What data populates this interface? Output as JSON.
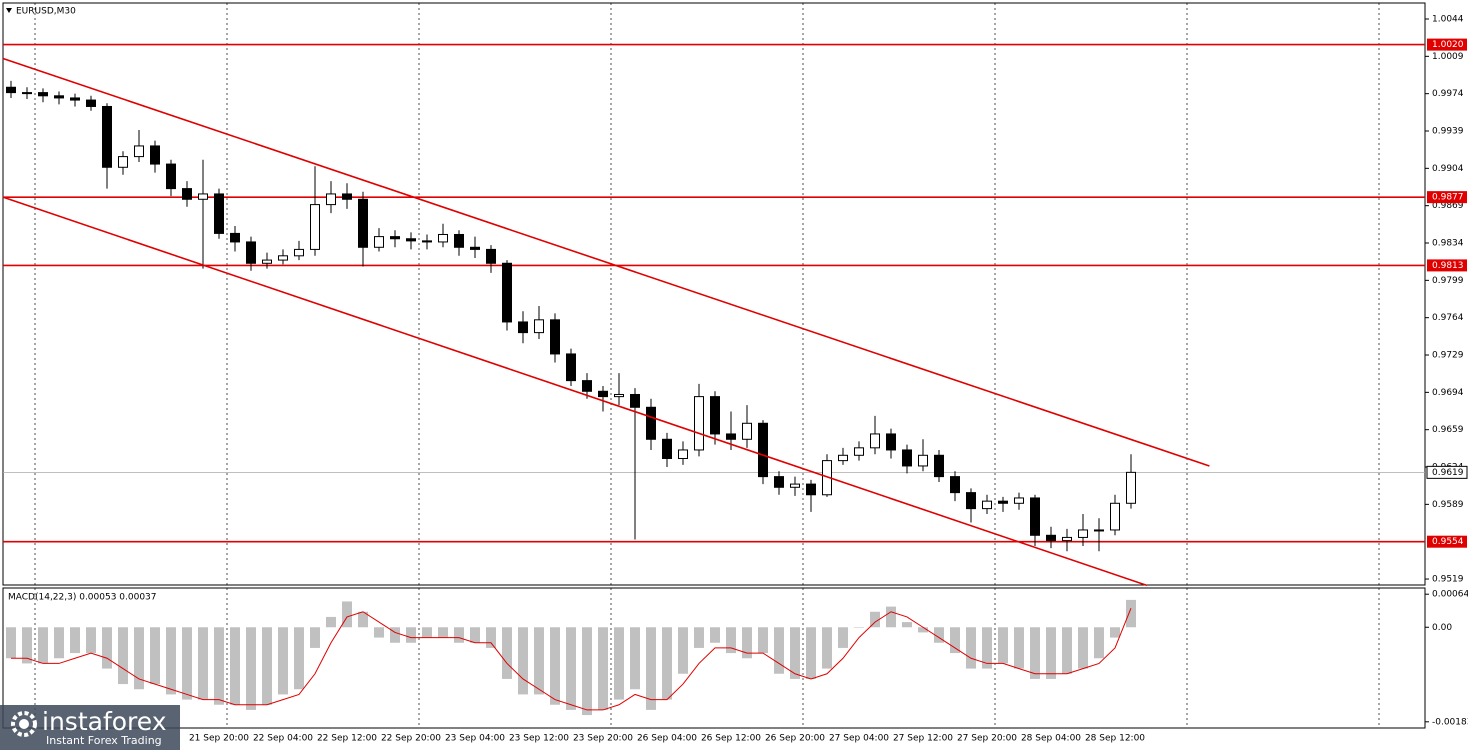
{
  "chart_data": [
    {
      "type": "candlestick",
      "title": "EURUSD,M30",
      "categories": [
        null,
        null,
        null,
        null,
        null,
        null,
        null,
        null,
        null,
        null,
        null,
        null,
        null,
        "21 Sep 20:00",
        null,
        null,
        null,
        "22 Sep 04:00",
        null,
        null,
        null,
        "22 Sep 12:00",
        null,
        null,
        null,
        "22 Sep 20:00",
        null,
        null,
        null,
        "23 Sep 04:00",
        null,
        null,
        null,
        "23 Sep 12:00",
        null,
        null,
        null,
        "23 Sep 20:00",
        null,
        null,
        null,
        "26 Sep 04:00",
        null,
        null,
        null,
        "26 Sep 12:00",
        null,
        null,
        null,
        "26 Sep 20:00",
        null,
        null,
        null,
        "27 Sep 04:00",
        null,
        null,
        null,
        "27 Sep 12:00",
        null,
        null,
        null,
        "27 Sep 20:00",
        null,
        null,
        null,
        "28 Sep 04:00",
        null,
        null,
        null,
        "28 Sep 12:00",
        null
      ],
      "open": [
        0.998,
        0.9975,
        0.9975,
        0.9972,
        0.997,
        0.9968,
        0.9962,
        0.9905,
        0.9915,
        0.9925,
        0.9908,
        0.9885,
        0.9875,
        0.988,
        0.9843,
        0.9835,
        0.9815,
        0.9818,
        0.9822,
        0.9828,
        0.987,
        0.988,
        0.9875,
        0.983,
        0.984,
        0.9838,
        0.9836,
        0.9835,
        0.9842,
        0.983,
        0.9828,
        0.9815,
        0.976,
        0.975,
        0.9762,
        0.973,
        0.9705,
        0.9695,
        0.969,
        0.9692,
        0.968,
        0.965,
        0.9632,
        0.964,
        0.969,
        0.9655,
        0.965,
        0.9665,
        0.9615,
        0.9605,
        0.9608,
        0.9598,
        0.963,
        0.9635,
        0.9642,
        0.9655,
        0.964,
        0.9625,
        0.9635,
        0.9615,
        0.96,
        0.9585,
        0.9592,
        0.959,
        0.9595,
        0.956,
        0.9555,
        0.9558,
        0.9565,
        0.9565,
        0.959
      ],
      "high": [
        0.9986,
        0.998,
        0.9979,
        0.9976,
        0.9974,
        0.9972,
        0.9965,
        0.992,
        0.994,
        0.993,
        0.9912,
        0.9892,
        0.9912,
        0.9885,
        0.985,
        0.984,
        0.9825,
        0.9828,
        0.9836,
        0.9906,
        0.9892,
        0.989,
        0.9882,
        0.9848,
        0.9846,
        0.9844,
        0.9842,
        0.9852,
        0.9846,
        0.984,
        0.9832,
        0.9818,
        0.977,
        0.9775,
        0.9768,
        0.9735,
        0.9712,
        0.97,
        0.9712,
        0.9698,
        0.9688,
        0.9656,
        0.9648,
        0.9702,
        0.9695,
        0.9676,
        0.9682,
        0.9668,
        0.962,
        0.9615,
        0.9612,
        0.9636,
        0.9642,
        0.9648,
        0.9672,
        0.966,
        0.9645,
        0.965,
        0.964,
        0.962,
        0.9604,
        0.9598,
        0.9596,
        0.96,
        0.9598,
        0.9568,
        0.9566,
        0.958,
        0.9576,
        0.9598,
        0.9636
      ],
      "low": [
        0.997,
        0.9969,
        0.9966,
        0.9964,
        0.9962,
        0.9958,
        0.9885,
        0.9898,
        0.991,
        0.99,
        0.9878,
        0.9868,
        0.981,
        0.9838,
        0.9826,
        0.9808,
        0.981,
        0.9814,
        0.9818,
        0.9822,
        0.9862,
        0.9866,
        0.9812,
        0.9826,
        0.983,
        0.9828,
        0.9828,
        0.983,
        0.9822,
        0.982,
        0.9806,
        0.9752,
        0.974,
        0.9744,
        0.9722,
        0.97,
        0.9688,
        0.9676,
        0.9682,
        0.9556,
        0.964,
        0.9624,
        0.9626,
        0.9634,
        0.9645,
        0.964,
        0.9642,
        0.9608,
        0.9598,
        0.9597,
        0.9582,
        0.9596,
        0.9626,
        0.963,
        0.9636,
        0.9632,
        0.9618,
        0.962,
        0.961,
        0.9592,
        0.9572,
        0.958,
        0.9582,
        0.9584,
        0.955,
        0.9548,
        0.9545,
        0.955,
        0.9545,
        0.956,
        0.9585
      ],
      "close": [
        0.9975,
        0.9975,
        0.9972,
        0.997,
        0.9968,
        0.9962,
        0.9905,
        0.9915,
        0.9925,
        0.9908,
        0.9885,
        0.9875,
        0.988,
        0.9843,
        0.9835,
        0.9815,
        0.9818,
        0.9822,
        0.9828,
        0.987,
        0.988,
        0.9875,
        0.983,
        0.984,
        0.9838,
        0.9836,
        0.9835,
        0.9842,
        0.983,
        0.9828,
        0.9815,
        0.976,
        0.975,
        0.9762,
        0.973,
        0.9705,
        0.9695,
        0.969,
        0.9692,
        0.968,
        0.965,
        0.9632,
        0.964,
        0.969,
        0.9655,
        0.965,
        0.9665,
        0.9615,
        0.9605,
        0.9608,
        0.9598,
        0.963,
        0.9635,
        0.9642,
        0.9655,
        0.964,
        0.9625,
        0.9635,
        0.9615,
        0.96,
        0.9585,
        0.9592,
        0.959,
        0.9595,
        0.956,
        0.9555,
        0.9558,
        0.9565,
        0.9565,
        0.959,
        0.9619
      ],
      "up_color": "#ffffff",
      "down_color": "#000000",
      "ylim": [
        0.95134,
        1.0059
      ],
      "yticks": [
        1.0044,
        1.0009,
        0.9974,
        0.9939,
        0.9904,
        0.9869,
        0.9834,
        0.9799,
        0.9764,
        0.9729,
        0.9694,
        0.9659,
        0.9624,
        0.9589,
        0.9519
      ],
      "levels": [
        {
          "value": 1.002,
          "label": "1.0020"
        },
        0.9877,
        0.9813,
        0.9554
      ],
      "level_color": "#e00000",
      "last_price": 0.9619,
      "trendlines": [
        {
          "x": [
            -0.5,
            74.9
          ],
          "y": [
            1.0007,
            0.9625
          ]
        },
        {
          "x": [
            -0.5,
            71.0
          ],
          "y": [
            0.9877,
            0.9513
          ]
        }
      ]
    },
    {
      "type": "macd",
      "title": "MACD(14,22,3) 0.00053 0.00037",
      "histogram": {
        "color": "#c0c0c0",
        "values": [
          -0.0006,
          -0.0007,
          -0.0007,
          -0.0006,
          -0.0005,
          -0.0005,
          -0.0008,
          -0.0011,
          -0.0012,
          -0.0011,
          -0.0013,
          -0.0014,
          -0.0014,
          -0.0015,
          -0.0015,
          -0.0016,
          -0.0015,
          -0.0013,
          -0.0012,
          -0.0004,
          0.0002,
          0.0005,
          0.0003,
          -0.0002,
          -0.0003,
          -0.0003,
          -0.0002,
          -0.0002,
          -0.0003,
          -0.0003,
          -0.0004,
          -0.001,
          -0.0013,
          -0.0013,
          -0.0015,
          -0.0016,
          -0.0017,
          -0.0016,
          -0.0014,
          -0.0012,
          -0.0016,
          -0.0014,
          -0.0009,
          -0.0004,
          -0.0003,
          -0.0005,
          -0.0006,
          -0.0005,
          -0.0009,
          -0.001,
          -0.001,
          -0.0008,
          -0.0004,
          0.0,
          0.0003,
          0.0004,
          0.0001,
          -0.0001,
          -0.0003,
          -0.0005,
          -0.0008,
          -0.0008,
          -0.0007,
          -0.0008,
          -0.001,
          -0.001,
          -0.0009,
          -0.0008,
          -0.0006,
          -0.0002,
          0.00053
        ]
      },
      "signal": {
        "color": "#e00000",
        "values": [
          -0.0006,
          -0.0006,
          -0.0007,
          -0.0007,
          -0.0006,
          -0.0005,
          -0.0006,
          -0.0008,
          -0.001,
          -0.0011,
          -0.0012,
          -0.0013,
          -0.0014,
          -0.0014,
          -0.0015,
          -0.0015,
          -0.0015,
          -0.0014,
          -0.0013,
          -0.0009,
          -0.0003,
          0.0002,
          0.0003,
          0.0001,
          -0.0001,
          -0.0002,
          -0.0002,
          -0.0002,
          -0.0002,
          -0.0003,
          -0.0003,
          -0.0007,
          -0.001,
          -0.0012,
          -0.0014,
          -0.0015,
          -0.0016,
          -0.0016,
          -0.0015,
          -0.0013,
          -0.0014,
          -0.0014,
          -0.0011,
          -0.0007,
          -0.0004,
          -0.0004,
          -0.0005,
          -0.0005,
          -0.0007,
          -0.0009,
          -0.001,
          -0.0009,
          -0.0006,
          -0.0002,
          0.0001,
          0.0003,
          0.0002,
          0.0,
          -0.0002,
          -0.0004,
          -0.0006,
          -0.0007,
          -0.0007,
          -0.0008,
          -0.0009,
          -0.0009,
          -0.0009,
          -0.0008,
          -0.0007,
          -0.0004,
          0.00037
        ]
      },
      "ylim": [
        -0.00195,
        0.00076
      ],
      "yticks": [
        0.00064,
        {
          "value": 0,
          "label": "0.00"
        },
        -0.00183
      ]
    }
  ],
  "watermark": {
    "brand": "instaforex",
    "tagline": "Instant Forex Trading"
  }
}
